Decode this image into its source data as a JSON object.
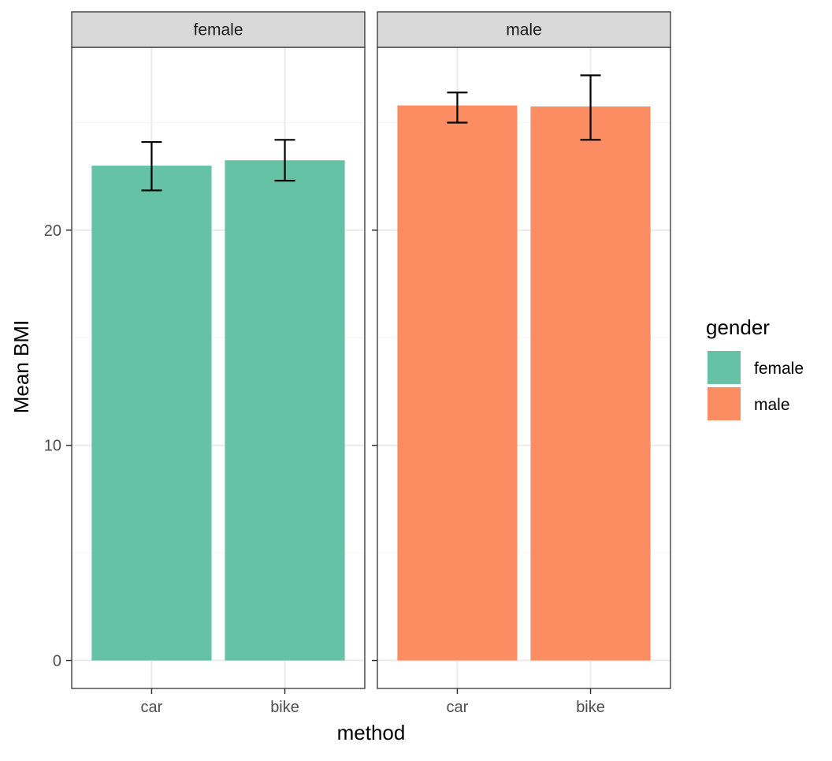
{
  "chart_data": {
    "type": "bar",
    "facet_by": "gender",
    "facets": [
      "female",
      "male"
    ],
    "categories": [
      "car",
      "bike"
    ],
    "xlabel": "method",
    "ylabel": "Mean BMI",
    "ylim": [
      -1.3,
      28.5
    ],
    "yticks": [
      0,
      10,
      20
    ],
    "grid": true,
    "series": [
      {
        "name": "female",
        "values": [
          23.0,
          23.25
        ],
        "error_low": [
          21.85,
          22.3
        ],
        "error_high": [
          24.1,
          24.2
        ]
      },
      {
        "name": "male",
        "values": [
          25.8,
          25.75
        ],
        "error_low": [
          25.0,
          24.2
        ],
        "error_high": [
          26.4,
          27.2
        ]
      }
    ],
    "legend": {
      "title": "gender",
      "position": "right",
      "entries": [
        "female",
        "male"
      ]
    }
  },
  "colors": {
    "female": "#66c2a5",
    "male": "#fc8d62",
    "grid_major": "#ebebeb",
    "grid_minor": "#f5f5f5",
    "strip_fill": "#d9d9d9",
    "panel_border": "#333333"
  }
}
